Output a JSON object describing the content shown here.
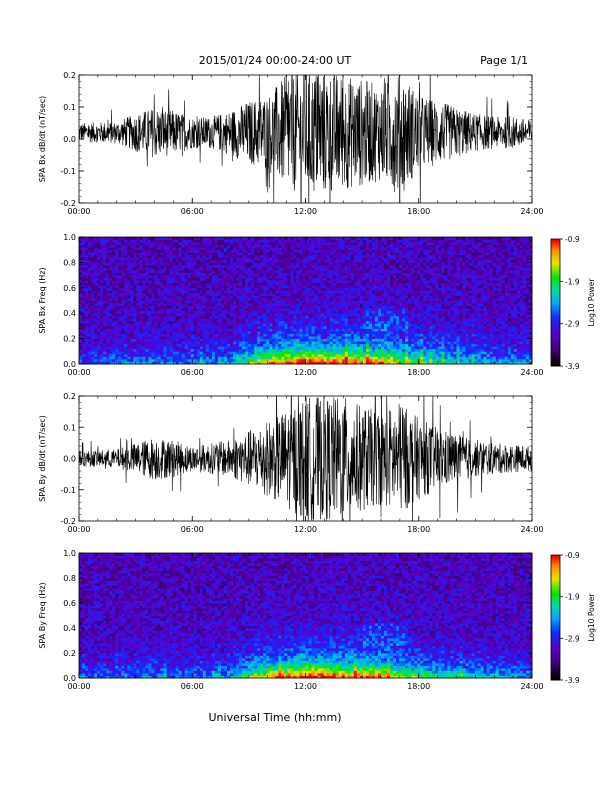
{
  "header": {
    "title": "2015/01/24  00:00-24:00 UT",
    "page": "Page 1/1"
  },
  "xlabel": "Universal Time (hh:mm)",
  "colors": {
    "trace": "#000000",
    "background": "#ffffff"
  },
  "chart_data": [
    {
      "type": "line",
      "ylabel": "SPA Bx dB/dt (nT/sec)",
      "xlim": [
        0,
        24
      ],
      "ylim": [
        -0.2,
        0.2
      ],
      "x_ticks": [
        "00:00",
        "06:00",
        "12:00",
        "18:00",
        "24:00"
      ],
      "y_ticks": [
        "-0.2",
        "-0.1",
        "0.0",
        "0.1",
        "0.2"
      ],
      "envelope_hours": [
        0,
        2,
        3,
        4,
        5,
        6,
        7,
        8,
        9,
        10,
        11,
        12,
        13,
        14,
        15,
        16,
        17,
        18,
        19,
        20,
        21,
        22,
        23,
        24
      ],
      "envelope_amplitude": [
        0.03,
        0.035,
        0.06,
        0.08,
        0.07,
        0.05,
        0.05,
        0.07,
        0.1,
        0.12,
        0.18,
        0.2,
        0.2,
        0.18,
        0.17,
        0.15,
        0.2,
        0.12,
        0.1,
        0.08,
        0.06,
        0.05,
        0.05,
        0.04
      ],
      "mean_value": 0.02
    },
    {
      "type": "heatmap",
      "ylabel": "SPA Bx Freq (Hz)",
      "xlim": [
        0,
        24
      ],
      "ylim": [
        0.0,
        1.0
      ],
      "x_ticks": [
        "00:00",
        "06:00",
        "12:00",
        "18:00",
        "24:00"
      ],
      "y_ticks": [
        "0.0",
        "0.2",
        "0.4",
        "0.6",
        "0.8",
        "1.0"
      ],
      "colorbar": {
        "label": "Log10 Power",
        "ticks": [
          "-0.9",
          "-1.9",
          "-2.9",
          "-3.9"
        ],
        "range": [
          -3.9,
          -0.9
        ]
      },
      "activity_hours": [
        0,
        2,
        4,
        6,
        8,
        9,
        10,
        11,
        12,
        13,
        14,
        15,
        16,
        17,
        18,
        19,
        20,
        22,
        24
      ],
      "activity_level": [
        0.2,
        0.25,
        0.3,
        0.25,
        0.35,
        0.6,
        0.8,
        0.9,
        1.0,
        0.95,
        0.9,
        0.85,
        0.9,
        0.7,
        0.6,
        0.5,
        0.45,
        0.35,
        0.3
      ]
    },
    {
      "type": "line",
      "ylabel": "SPA By dB/dt (nT/sec)",
      "xlim": [
        0,
        24
      ],
      "ylim": [
        -0.2,
        0.2
      ],
      "x_ticks": [
        "00:00",
        "06:00",
        "12:00",
        "18:00",
        "24:00"
      ],
      "y_ticks": [
        "-0.2",
        "-0.1",
        "0.0",
        "0.1",
        "0.2"
      ],
      "envelope_hours": [
        0,
        2,
        3,
        4,
        5,
        6,
        7,
        8,
        9,
        10,
        11,
        12,
        13,
        14,
        15,
        16,
        17,
        18,
        19,
        20,
        21,
        22,
        23,
        24
      ],
      "envelope_amplitude": [
        0.025,
        0.03,
        0.05,
        0.07,
        0.06,
        0.04,
        0.05,
        0.06,
        0.09,
        0.12,
        0.16,
        0.2,
        0.2,
        0.2,
        0.17,
        0.15,
        0.18,
        0.13,
        0.1,
        0.08,
        0.06,
        0.05,
        0.045,
        0.04
      ],
      "mean_value": 0.0
    },
    {
      "type": "heatmap",
      "ylabel": "SPA By Freq (Hz)",
      "xlim": [
        0,
        24
      ],
      "ylim": [
        0.0,
        1.0
      ],
      "x_ticks": [
        "00:00",
        "06:00",
        "12:00",
        "18:00",
        "24:00"
      ],
      "y_ticks": [
        "0.0",
        "0.2",
        "0.4",
        "0.6",
        "0.8",
        "1.0"
      ],
      "colorbar": {
        "label": "Log10 Power",
        "ticks": [
          "-0.9",
          "-1.9",
          "-2.9",
          "-3.9"
        ],
        "range": [
          -3.9,
          -0.9
        ]
      },
      "activity_hours": [
        0,
        2,
        4,
        6,
        8,
        9,
        10,
        11,
        12,
        13,
        14,
        15,
        16,
        17,
        18,
        19,
        20,
        22,
        24
      ],
      "activity_level": [
        0.2,
        0.25,
        0.3,
        0.25,
        0.35,
        0.6,
        0.8,
        0.9,
        1.0,
        0.95,
        0.9,
        0.85,
        0.9,
        0.7,
        0.6,
        0.5,
        0.45,
        0.35,
        0.3
      ]
    }
  ]
}
